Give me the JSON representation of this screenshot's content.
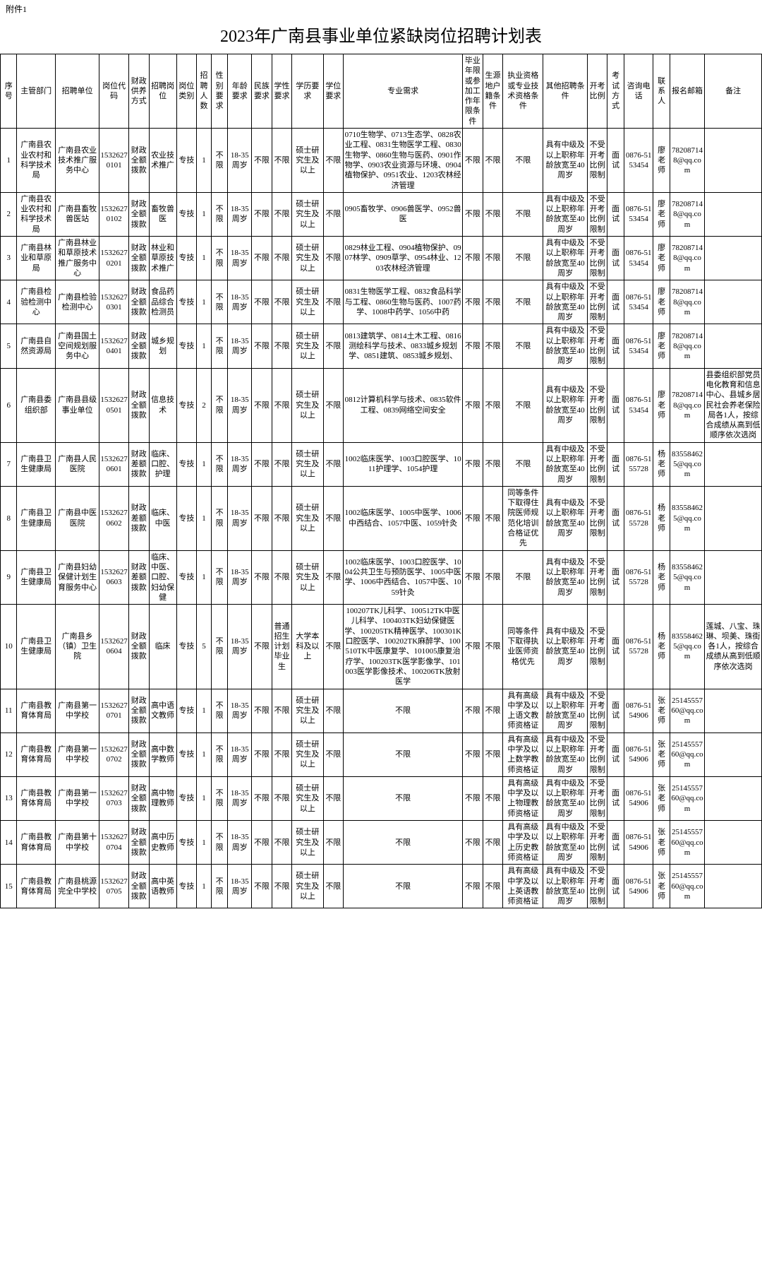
{
  "attachment": "附件1",
  "title": "2023年广南县事业单位紧缺岗位招聘计划表",
  "headers": [
    "序号",
    "主管部门",
    "招聘单位",
    "岗位代码",
    "财政供养方式",
    "招聘岗位",
    "岗位类别",
    "招聘人数",
    "性别要求",
    "年龄要求",
    "民族要求",
    "学性要求",
    "学历要求",
    "学位要求",
    "专业需求",
    "毕业年限或参加工作年限条件",
    "生源地户籍条件",
    "执业资格或专业技术资格条件",
    "其他招聘条件",
    "开考比例",
    "考试方式",
    "咨询电话",
    "联系人",
    "报名邮箱",
    "备注"
  ],
  "rows": [
    {
      "seq": "1",
      "dept": "广南县农业农村和科学技术局",
      "unit": "广南县农业技术推广服务中心",
      "code": "15326270101",
      "fund": "财政全额拨款",
      "post": "农业技术推广",
      "cat": "专技",
      "num": "1",
      "sex": "不限",
      "age": "18-35周岁",
      "eth": "不限",
      "sch": "不限",
      "edu": "硕士研究生及以上",
      "deg": "不限",
      "major": "0710生物学、0713生态学、0828农业工程、0831生物医学工程、0830生物学、0860生物与医药、0901作物学、0903农业资源与环境、0904植物保护、0951农业、1203农林经济管理",
      "exp": "不限",
      "orig": "不限",
      "cert": "不限",
      "other": "具有中级及以上职称年龄放宽至40周岁",
      "ratio": "不受开考比例限制",
      "exam": "面试",
      "tel": "0876-5153454",
      "contact": "廖老师",
      "email": "782087148@qq.com",
      "note": ""
    },
    {
      "seq": "2",
      "dept": "广南县农业农村和科学技术局",
      "unit": "广南县畜牧兽医站",
      "code": "15326270102",
      "fund": "财政全额拨款",
      "post": "畜牧兽医",
      "cat": "专技",
      "num": "1",
      "sex": "不限",
      "age": "18-35周岁",
      "eth": "不限",
      "sch": "不限",
      "edu": "硕士研究生及以上",
      "deg": "不限",
      "major": "0905畜牧学、0906兽医学、0952兽医",
      "exp": "不限",
      "orig": "不限",
      "cert": "不限",
      "other": "具有中级及以上职称年龄放宽至40周岁",
      "ratio": "不受开考比例限制",
      "exam": "面试",
      "tel": "0876-5153454",
      "contact": "廖老师",
      "email": "782087148@qq.com",
      "note": ""
    },
    {
      "seq": "3",
      "dept": "广南县林业和草原局",
      "unit": "广南县林业和草原技术推广服务中心",
      "code": "15326270201",
      "fund": "财政全额拨款",
      "post": "林业和草原技术推广",
      "cat": "专技",
      "num": "1",
      "sex": "不限",
      "age": "18-35周岁",
      "eth": "不限",
      "sch": "不限",
      "edu": "硕士研究生及以上",
      "deg": "不限",
      "major": "0829林业工程、0904植物保护、0907林学、0909草学、0954林业、1203农林经济管理",
      "exp": "不限",
      "orig": "不限",
      "cert": "不限",
      "other": "具有中级及以上职称年龄放宽至40周岁",
      "ratio": "不受开考比例限制",
      "exam": "面试",
      "tel": "0876-5153454",
      "contact": "廖老师",
      "email": "782087148@qq.com",
      "note": ""
    },
    {
      "seq": "4",
      "dept": "广南县检验检测中心",
      "unit": "广南县检验检测中心",
      "code": "15326270301",
      "fund": "财政全额拨款",
      "post": "食品药品综合检测员",
      "cat": "专技",
      "num": "1",
      "sex": "不限",
      "age": "18-35周岁",
      "eth": "不限",
      "sch": "不限",
      "edu": "硕士研究生及以上",
      "deg": "不限",
      "major": "0831生物医学工程、0832食品科学与工程、0860生物与医药、1007药学、1008中药学、1056中药",
      "exp": "不限",
      "orig": "不限",
      "cert": "不限",
      "other": "具有中级及以上职称年龄放宽至40周岁",
      "ratio": "不受开考比例限制",
      "exam": "面试",
      "tel": "0876-5153454",
      "contact": "廖老师",
      "email": "782087148@qq.com",
      "note": ""
    },
    {
      "seq": "5",
      "dept": "广南县自然资源局",
      "unit": "广南县国土空间规划服务中心",
      "code": "15326270401",
      "fund": "财政全额拨款",
      "post": "城乡规划",
      "cat": "专技",
      "num": "1",
      "sex": "不限",
      "age": "18-35周岁",
      "eth": "不限",
      "sch": "不限",
      "edu": "硕士研究生及以上",
      "deg": "不限",
      "major": "0813建筑学、0814土木工程、0816测绘科学与技术、0833城乡规划学、0851建筑、0853城乡规划、",
      "exp": "不限",
      "orig": "不限",
      "cert": "不限",
      "other": "具有中级及以上职称年龄放宽至40周岁",
      "ratio": "不受开考比例限制",
      "exam": "面试",
      "tel": "0876-5153454",
      "contact": "廖老师",
      "email": "782087148@qq.com",
      "note": ""
    },
    {
      "seq": "6",
      "dept": "广南县委组织部",
      "unit": "广南县县级事业单位",
      "code": "15326270501",
      "fund": "财政全额拨款",
      "post": "信息技术",
      "cat": "专技",
      "num": "2",
      "sex": "不限",
      "age": "18-35周岁",
      "eth": "不限",
      "sch": "不限",
      "edu": "硕士研究生及以上",
      "deg": "不限",
      "major": "0812计算机科学与技术、0835软件工程、0839网络空间安全",
      "exp": "不限",
      "orig": "不限",
      "cert": "不限",
      "other": "具有中级及以上职称年龄放宽至40周岁",
      "ratio": "不受开考比例限制",
      "exam": "面试",
      "tel": "0876-5153454",
      "contact": "廖老师",
      "email": "782087148@qq.com",
      "note": "县委组织部党员电化教育和信息中心、县城乡居民社会养老保险局各1人，按综合成绩从高到低顺序依次选岗"
    },
    {
      "seq": "7",
      "dept": "广南县卫生健康局",
      "unit": "广南县人民医院",
      "code": "15326270601",
      "fund": "财政差额拨款",
      "post": "临床、口腔、护理",
      "cat": "专技",
      "num": "1",
      "sex": "不限",
      "age": "18-35周岁",
      "eth": "不限",
      "sch": "不限",
      "edu": "硕士研究生及以上",
      "deg": "不限",
      "major": "1002临床医学、1003口腔医学、1011护理学、1054护理",
      "exp": "不限",
      "orig": "不限",
      "cert": "不限",
      "other": "具有中级及以上职称年龄放宽至40周岁",
      "ratio": "不受开考比例限制",
      "exam": "面试",
      "tel": "0876-5155728",
      "contact": "杨老师",
      "email": "835584625@qq.com",
      "note": ""
    },
    {
      "seq": "8",
      "dept": "广南县卫生健康局",
      "unit": "广南县中医医院",
      "code": "15326270602",
      "fund": "财政差额拨款",
      "post": "临床、中医",
      "cat": "专技",
      "num": "1",
      "sex": "不限",
      "age": "18-35周岁",
      "eth": "不限",
      "sch": "不限",
      "edu": "硕士研究生及以上",
      "deg": "不限",
      "major": "1002临床医学、1005中医学、1006中西结合、1057中医、1059针灸",
      "exp": "不限",
      "orig": "不限",
      "cert": "同等条件下取得住院医师规范化培训合格证优先",
      "other": "具有中级及以上职称年龄放宽至40周岁",
      "ratio": "不受开考比例限制",
      "exam": "面试",
      "tel": "0876-5155728",
      "contact": "杨老师",
      "email": "835584625@qq.com",
      "note": ""
    },
    {
      "seq": "9",
      "dept": "广南县卫生健康局",
      "unit": "广南县妇幼保健计划生育服务中心",
      "code": "15326270603",
      "fund": "财政差额拨款",
      "post": "临床、中医、口腔、妇幼保健",
      "cat": "专技",
      "num": "1",
      "sex": "不限",
      "age": "18-35周岁",
      "eth": "不限",
      "sch": "不限",
      "edu": "硕士研究生及以上",
      "deg": "不限",
      "major": "1002临床医学、1003口腔医学、1004公共卫生与预防医学、1005中医学、1006中西结合、1057中医、1059针灸",
      "exp": "不限",
      "orig": "不限",
      "cert": "不限",
      "other": "具有中级及以上职称年龄放宽至40周岁",
      "ratio": "不受开考比例限制",
      "exam": "面试",
      "tel": "0876-5155728",
      "contact": "杨老师",
      "email": "835584625@qq.com",
      "note": ""
    },
    {
      "seq": "10",
      "dept": "广南县卫生健康局",
      "unit": "广南县乡（镇）卫生院",
      "code": "15326270604",
      "fund": "财政全额拨款",
      "post": "临床",
      "cat": "专技",
      "num": "5",
      "sex": "不限",
      "age": "18-35周岁",
      "eth": "不限",
      "sch": "普通招生计划毕业生",
      "edu": "大学本科及以上",
      "deg": "不限",
      "major": "100207TK儿科学、100512TK中医儿科学、100403TK妇幼保健医学、100205TK精神医学、100301K口腔医学、100202TK麻醉学、100510TK中医康复学、101005康复治疗学、100203TK医学影像学、101003医学影像技术、100206TK放射医学",
      "exp": "不限",
      "orig": "不限",
      "cert": "同等条件下取得执业医师资格优先",
      "other": "具有中级及以上职称年龄放宽至40周岁",
      "ratio": "不受开考比例限制",
      "exam": "面试",
      "tel": "0876-5155728",
      "contact": "杨老师",
      "email": "835584625@qq.com",
      "note": "莲城、八宝、珠琳、坝美、珠街各1人，按综合成绩从高到低顺序依次选岗"
    },
    {
      "seq": "11",
      "dept": "广南县教育体育局",
      "unit": "广南县第一中学校",
      "code": "15326270701",
      "fund": "财政全额拨款",
      "post": "高中语文教师",
      "cat": "专技",
      "num": "1",
      "sex": "不限",
      "age": "18-35周岁",
      "eth": "不限",
      "sch": "不限",
      "edu": "硕士研究生及以上",
      "deg": "不限",
      "major": "不限",
      "exp": "不限",
      "orig": "不限",
      "cert": "具有高级中学及以上语文教师资格证",
      "other": "具有中级及以上职称年龄放宽至40周岁",
      "ratio": "不受开考比例限制",
      "exam": "面试",
      "tel": "0876-5154906",
      "contact": "张老师",
      "email": "2514555760@qq.com",
      "note": ""
    },
    {
      "seq": "12",
      "dept": "广南县教育体育局",
      "unit": "广南县第一中学校",
      "code": "15326270702",
      "fund": "财政全额拨款",
      "post": "高中数学教师",
      "cat": "专技",
      "num": "1",
      "sex": "不限",
      "age": "18-35周岁",
      "eth": "不限",
      "sch": "不限",
      "edu": "硕士研究生及以上",
      "deg": "不限",
      "major": "不限",
      "exp": "不限",
      "orig": "不限",
      "cert": "具有高级中学及以上数学教师资格证",
      "other": "具有中级及以上职称年龄放宽至40周岁",
      "ratio": "不受开考比例限制",
      "exam": "面试",
      "tel": "0876-5154906",
      "contact": "张老师",
      "email": "2514555760@qq.com",
      "note": ""
    },
    {
      "seq": "13",
      "dept": "广南县教育体育局",
      "unit": "广南县第一中学校",
      "code": "15326270703",
      "fund": "财政全额拨款",
      "post": "高中物理教师",
      "cat": "专技",
      "num": "1",
      "sex": "不限",
      "age": "18-35周岁",
      "eth": "不限",
      "sch": "不限",
      "edu": "硕士研究生及以上",
      "deg": "不限",
      "major": "不限",
      "exp": "不限",
      "orig": "不限",
      "cert": "具有高级中学及以上物理教师资格证",
      "other": "具有中级及以上职称年龄放宽至40周岁",
      "ratio": "不受开考比例限制",
      "exam": "面试",
      "tel": "0876-5154906",
      "contact": "张老师",
      "email": "2514555760@qq.com",
      "note": ""
    },
    {
      "seq": "14",
      "dept": "广南县教育体育局",
      "unit": "广南县第十中学校",
      "code": "15326270704",
      "fund": "财政全额拨款",
      "post": "高中历史教师",
      "cat": "专技",
      "num": "1",
      "sex": "不限",
      "age": "18-35周岁",
      "eth": "不限",
      "sch": "不限",
      "edu": "硕士研究生及以上",
      "deg": "不限",
      "major": "不限",
      "exp": "不限",
      "orig": "不限",
      "cert": "具有高级中学及以上历史教师资格证",
      "other": "具有中级及以上职称年龄放宽至40周岁",
      "ratio": "不受开考比例限制",
      "exam": "面试",
      "tel": "0876-5154906",
      "contact": "张老师",
      "email": "2514555760@qq.com",
      "note": ""
    },
    {
      "seq": "15",
      "dept": "广南县教育体育局",
      "unit": "广南县桃源完全中学校",
      "code": "15326270705",
      "fund": "财政全额拨款",
      "post": "高中英语教师",
      "cat": "专技",
      "num": "1",
      "sex": "不限",
      "age": "18-35周岁",
      "eth": "不限",
      "sch": "不限",
      "edu": "硕士研究生及以上",
      "deg": "不限",
      "major": "不限",
      "exp": "不限",
      "orig": "不限",
      "cert": "具有高级中学及以上英语教师资格证",
      "other": "具有中级及以上职称年龄放宽至40周岁",
      "ratio": "不受开考比例限制",
      "exam": "面试",
      "tel": "0876-5154906",
      "contact": "张老师",
      "email": "2514555760@qq.com",
      "note": ""
    }
  ]
}
